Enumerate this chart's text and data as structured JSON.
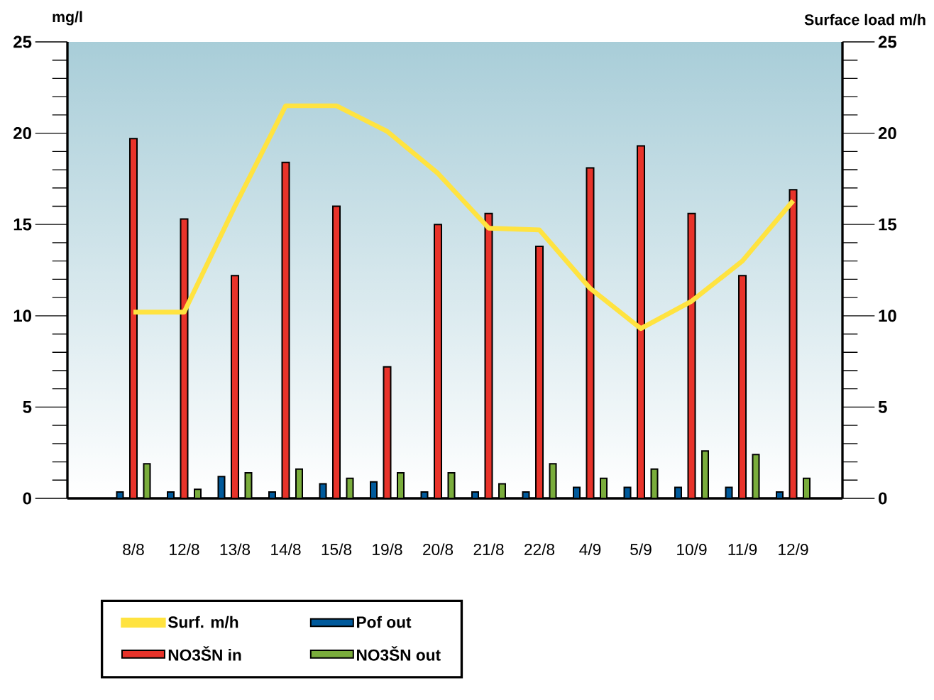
{
  "chart_data": {
    "type": "bar",
    "ylabel": "mg/l",
    "y2label": "Surface load m/h",
    "categories": [
      "8/8",
      "12/8",
      "13/8",
      "14/8",
      "15/8",
      "19/8",
      "20/8",
      "21/8",
      "22/8",
      "4/9",
      "5/9",
      "10/9",
      "11/9",
      "12/9"
    ],
    "series": [
      {
        "name": "Surf. m/h",
        "type": "line",
        "axis": "y2",
        "color": "#ffe340",
        "values": [
          10.2,
          10.2,
          16.0,
          21.5,
          21.5,
          20.1,
          17.8,
          14.8,
          14.7,
          11.5,
          9.3,
          10.8,
          13.0,
          16.3
        ]
      },
      {
        "name": "Pof out",
        "color": "#005a9c",
        "values": [
          0.35,
          0.35,
          1.2,
          0.35,
          0.8,
          0.9,
          0.35,
          0.35,
          0.35,
          0.6,
          0.6,
          0.6,
          0.6,
          0.35
        ]
      },
      {
        "name": "NO3ŠN in",
        "color": "#e8332a",
        "values": [
          19.7,
          15.3,
          12.2,
          18.4,
          16.0,
          7.2,
          15.0,
          15.6,
          13.8,
          18.1,
          19.3,
          15.6,
          12.2,
          16.9
        ]
      },
      {
        "name": "NO3ŠN out",
        "color": "#7aad3c",
        "values": [
          1.9,
          0.5,
          1.4,
          1.6,
          1.1,
          1.4,
          1.4,
          0.8,
          1.9,
          1.1,
          1.6,
          2.6,
          2.4,
          1.1
        ]
      }
    ],
    "ylim": [
      0,
      25
    ],
    "yticks": [
      0,
      5,
      10,
      15,
      20,
      25
    ],
    "y2lim": [
      0,
      25
    ],
    "y2ticks": [
      0,
      5,
      10,
      15,
      20,
      25
    ],
    "legend": "bottom",
    "grid": false,
    "marker": "none",
    "line_style": "solid"
  }
}
